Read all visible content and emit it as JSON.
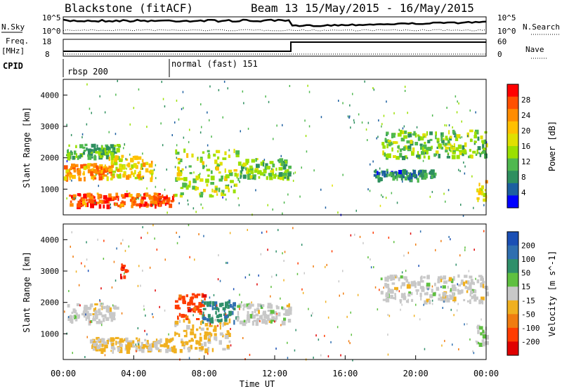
{
  "header": {
    "station": "Blackstone (fitACF)",
    "beam_and_dates": "Beam 13 15/May/2015 - 16/May/2015"
  },
  "noise_panel": {
    "left_label": "N.Sky",
    "right_label": "N.Search",
    "left_ticks": [
      "10^5",
      "10^0"
    ],
    "right_ticks": [
      "10^5",
      "10^0"
    ]
  },
  "freq_panel": {
    "left_label_line1": "Freq.",
    "left_label_line2": "[MHz]",
    "left_ticks": [
      "18",
      "8"
    ],
    "right_label": "Nave",
    "right_ticks": [
      "60",
      "0"
    ]
  },
  "cpid_panel": {
    "label": "CPID",
    "modes": [
      {
        "name": "rbsp 200",
        "start_hour": 0
      },
      {
        "name": "normal (fast) 151",
        "start_hour": 6
      }
    ]
  },
  "x_axis": {
    "label": "Time UT",
    "ticks": [
      "00:00",
      "04:00",
      "08:00",
      "12:00",
      "16:00",
      "20:00",
      "00:00"
    ],
    "range_hours": [
      0,
      24
    ]
  },
  "y_axis": {
    "label": "Slant Range [km]",
    "ticks": [
      "1000",
      "2000",
      "3000",
      "4000"
    ],
    "range_km": [
      180,
      4500
    ]
  },
  "power_colorbar": {
    "label": "Power [dB]",
    "ticks": [
      "28",
      "24",
      "20",
      "16",
      "12",
      "8",
      "4"
    ],
    "colors": [
      "#ff0000",
      "#ff5000",
      "#ff8c00",
      "#ffc000",
      "#e0e000",
      "#9be000",
      "#4fb84f",
      "#2e8f5f",
      "#1c5fa0",
      "#0000ff"
    ]
  },
  "velocity_colorbar": {
    "label": "Velocity [m s^-1]",
    "ticks": [
      "200",
      "100",
      "50",
      "15",
      "-15",
      "-50",
      "-100",
      "-200"
    ],
    "colors": [
      "#1a4fb5",
      "#2f6fb0",
      "#2f8f6a",
      "#5fc040",
      "#c8c8c8",
      "#f0b020",
      "#f07c10",
      "#ff3c00",
      "#e00000"
    ]
  },
  "chart_data": [
    {
      "type": "heatmap",
      "title": "Power",
      "xlabel": "Time UT",
      "ylabel": "Slant Range [km]",
      "xlim": [
        0,
        24
      ],
      "ylim": [
        180,
        4500
      ],
      "zlim": [
        0,
        30
      ],
      "features": [
        {
          "t0": 0,
          "t1": 2.8,
          "r0": 1350,
          "r1": 1850,
          "power_db": 22
        },
        {
          "t0": 0.2,
          "t1": 3.2,
          "r0": 2050,
          "r1": 2450,
          "power_db": 10
        },
        {
          "t0": 0.3,
          "t1": 6.3,
          "r0": 500,
          "r1": 900,
          "power_db": 26
        },
        {
          "t0": 2.5,
          "t1": 5.0,
          "r0": 1350,
          "r1": 2100,
          "power_db": 18
        },
        {
          "t0": 6.3,
          "t1": 10.0,
          "r0": 800,
          "r1": 2300,
          "power_db": 14
        },
        {
          "t0": 10.0,
          "t1": 12.8,
          "r0": 1400,
          "r1": 2000,
          "power_db": 12
        },
        {
          "t0": 18.0,
          "t1": 24.0,
          "r0": 2050,
          "r1": 2900,
          "power_db": 12
        },
        {
          "t0": 17.5,
          "t1": 21.0,
          "r0": 1350,
          "r1": 1650,
          "power_db": 6
        },
        {
          "t0": 23.4,
          "t1": 24.0,
          "r0": 700,
          "r1": 1300,
          "power_db": 18
        }
      ]
    },
    {
      "type": "heatmap",
      "title": "Velocity",
      "xlabel": "Time UT",
      "ylabel": "Slant Range [km]",
      "xlim": [
        0,
        24
      ],
      "ylim": [
        180,
        4500
      ],
      "zlim": [
        -200,
        200
      ],
      "features": [
        {
          "t0": 0.2,
          "t1": 3.0,
          "r0": 1400,
          "r1": 2000,
          "velocity": 0
        },
        {
          "t0": 1.5,
          "t1": 6.3,
          "r0": 500,
          "r1": 900,
          "velocity": -30
        },
        {
          "t0": 3.2,
          "t1": 3.6,
          "r0": 2800,
          "r1": 3300,
          "velocity": -180
        },
        {
          "t0": 6.3,
          "t1": 8.0,
          "r0": 1500,
          "r1": 2300,
          "velocity": -150
        },
        {
          "t0": 6.3,
          "t1": 9.5,
          "r0": 500,
          "r1": 1500,
          "velocity": -40
        },
        {
          "t0": 7.8,
          "t1": 9.8,
          "r0": 1400,
          "r1": 2100,
          "velocity": 120
        },
        {
          "t0": 9.8,
          "t1": 12.8,
          "r0": 1400,
          "r1": 2000,
          "velocity": 0
        },
        {
          "t0": 18.0,
          "t1": 24.0,
          "r0": 2050,
          "r1": 2900,
          "velocity": 0
        },
        {
          "t0": 23.4,
          "t1": 24.0,
          "r0": 700,
          "r1": 1300,
          "velocity": 0
        }
      ]
    }
  ]
}
